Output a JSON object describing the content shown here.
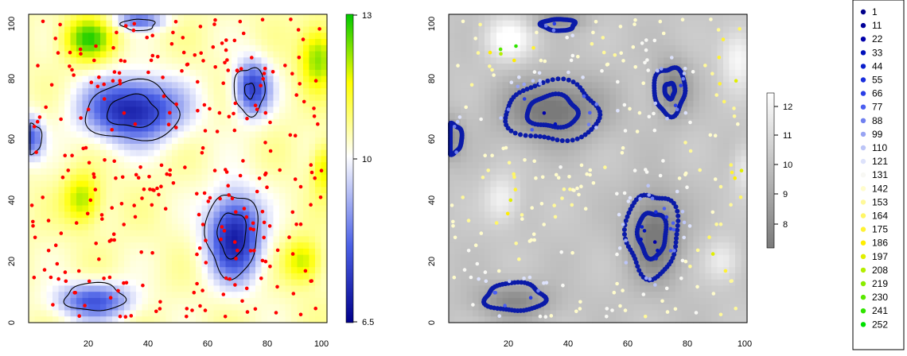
{
  "chart_data": [
    {
      "type": "heatmap",
      "title": "",
      "xlabel": "",
      "ylabel": "",
      "xlim": [
        0,
        100
      ],
      "ylim": [
        0,
        100
      ],
      "x_ticks": [
        "20",
        "40",
        "60",
        "80",
        "100"
      ],
      "y_ticks": [
        "0",
        "20",
        "40",
        "60",
        "80",
        "100"
      ],
      "colorbar": {
        "min": 6.5,
        "max": 13,
        "ticks": [
          "6.5",
          "10",
          "13"
        ],
        "colors": [
          "#00008b",
          "#4b61e6",
          "#ffffff",
          "#ffff00",
          "#00c800"
        ]
      },
      "blobs": [
        {
          "x": 35,
          "y": 69,
          "rx": 16,
          "ry": 10,
          "depth": 3.2
        },
        {
          "x": 69,
          "y": 28,
          "rx": 9,
          "ry": 14,
          "depth": 3.2
        },
        {
          "x": 75,
          "y": 76,
          "rx": 6,
          "ry": 9,
          "depth": 2.6
        },
        {
          "x": 22,
          "y": 7,
          "rx": 13,
          "ry": 6,
          "depth": 2.2
        },
        {
          "x": 1,
          "y": 60,
          "rx": 4,
          "ry": 7,
          "depth": 2.0
        },
        {
          "x": 37,
          "y": 98,
          "rx": 9,
          "ry": 3,
          "depth": 1.8
        },
        {
          "x": 20,
          "y": 92,
          "rx": 8,
          "ry": 7,
          "depth": -2.4
        },
        {
          "x": 97,
          "y": 86,
          "rx": 6,
          "ry": 10,
          "depth": -2.0
        },
        {
          "x": 18,
          "y": 40,
          "rx": 6,
          "ry": 8,
          "depth": -1.8
        },
        {
          "x": 92,
          "y": 20,
          "rx": 6,
          "ry": 7,
          "depth": -1.6
        },
        {
          "x": 99,
          "y": 50,
          "rx": 4,
          "ry": 8,
          "depth": -1.4
        }
      ],
      "points_color": "#ff0000",
      "points_n": 300,
      "contour_color": "#000000"
    },
    {
      "type": "heatmap",
      "title": "",
      "xlabel": "",
      "ylabel": "",
      "xlim": [
        0,
        100
      ],
      "ylim": [
        0,
        100
      ],
      "x_ticks": [
        "20",
        "40",
        "60",
        "80",
        "100"
      ],
      "y_ticks": [
        "0",
        "20",
        "40",
        "60",
        "80",
        "100"
      ],
      "colorbar": {
        "min": 7.3,
        "max": 12.4,
        "ticks": [
          "8",
          "9",
          "10",
          "11",
          "12"
        ],
        "colors": [
          "#7a7a7a",
          "#ffffff"
        ]
      },
      "points_n": 300,
      "contour_color": "#0a1aa8"
    }
  ],
  "legend": {
    "placement": "right",
    "entries": [
      "1",
      "11",
      "22",
      "33",
      "44",
      "55",
      "66",
      "77",
      "88",
      "99",
      "110",
      "121",
      "131",
      "142",
      "153",
      "164",
      "175",
      "186",
      "197",
      "208",
      "219",
      "230",
      "241",
      "252"
    ],
    "colors": [
      "#00008b",
      "#000099",
      "#0000aa",
      "#0010bb",
      "#0a1fcc",
      "#1a2fdd",
      "#2a3ee6",
      "#4b5ff0",
      "#7080f0",
      "#98a4f3",
      "#bcc5f7",
      "#dde2fb",
      "#f8f8f4",
      "#fffccc",
      "#fff99a",
      "#fff666",
      "#fff233",
      "#ffee00",
      "#e0ef00",
      "#b4ee00",
      "#8aec00",
      "#5ae800",
      "#30e400",
      "#00e000"
    ]
  }
}
